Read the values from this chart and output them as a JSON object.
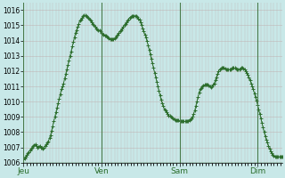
{
  "background_color": "#c8e8e8",
  "plot_bg_color": "#c8e8e8",
  "grid_color_v": "#c0b8b8",
  "grid_color_h": "#c0b8b8",
  "line_color": "#2d6e2d",
  "marker_color": "#2d6e2d",
  "ylim": [
    1006,
    1016.5
  ],
  "yticks": [
    1006,
    1007,
    1008,
    1009,
    1010,
    1011,
    1012,
    1013,
    1014,
    1015,
    1016
  ],
  "day_labels": [
    "Jeu",
    "Ven",
    "Sam",
    "Dim"
  ],
  "day_positions": [
    0,
    72,
    144,
    216
  ],
  "total_points": 288,
  "pressure_data": [
    1006.2,
    1006.3,
    1006.4,
    1006.5,
    1006.6,
    1006.7,
    1006.8,
    1006.9,
    1007.0,
    1007.1,
    1007.15,
    1007.2,
    1007.1,
    1007.0,
    1007.05,
    1007.1,
    1007.0,
    1006.95,
    1006.9,
    1007.0,
    1007.1,
    1007.2,
    1007.3,
    1007.4,
    1007.6,
    1007.8,
    1008.1,
    1008.4,
    1008.7,
    1009.0,
    1009.3,
    1009.6,
    1009.9,
    1010.2,
    1010.5,
    1010.8,
    1011.0,
    1011.2,
    1011.5,
    1011.8,
    1012.1,
    1012.4,
    1012.7,
    1013.0,
    1013.3,
    1013.6,
    1013.9,
    1014.2,
    1014.5,
    1014.7,
    1014.9,
    1015.1,
    1015.3,
    1015.4,
    1015.5,
    1015.6,
    1015.65,
    1015.65,
    1015.6,
    1015.55,
    1015.5,
    1015.4,
    1015.3,
    1015.2,
    1015.1,
    1015.0,
    1014.9,
    1014.8,
    1014.75,
    1014.7,
    1014.65,
    1014.6,
    1014.5,
    1014.45,
    1014.4,
    1014.35,
    1014.3,
    1014.25,
    1014.2,
    1014.15,
    1014.1,
    1014.1,
    1014.1,
    1014.1,
    1014.15,
    1014.2,
    1014.3,
    1014.4,
    1014.5,
    1014.6,
    1014.7,
    1014.8,
    1014.9,
    1015.0,
    1015.1,
    1015.2,
    1015.3,
    1015.4,
    1015.5,
    1015.55,
    1015.6,
    1015.62,
    1015.63,
    1015.62,
    1015.6,
    1015.55,
    1015.45,
    1015.35,
    1015.2,
    1015.0,
    1014.8,
    1014.6,
    1014.4,
    1014.2,
    1013.95,
    1013.7,
    1013.4,
    1013.1,
    1012.8,
    1012.5,
    1012.2,
    1011.9,
    1011.6,
    1011.3,
    1011.0,
    1010.7,
    1010.4,
    1010.1,
    1009.9,
    1009.7,
    1009.5,
    1009.4,
    1009.3,
    1009.2,
    1009.1,
    1009.05,
    1009.0,
    1008.95,
    1008.9,
    1008.85,
    1008.8,
    1008.8,
    1008.8,
    1008.8,
    1008.75,
    1008.7,
    1008.7,
    1008.7,
    1008.7,
    1008.7,
    1008.7,
    1008.7,
    1008.75,
    1008.8,
    1008.85,
    1008.9,
    1009.0,
    1009.2,
    1009.4,
    1009.7,
    1010.0,
    1010.3,
    1010.6,
    1010.8,
    1010.9,
    1011.0,
    1011.05,
    1011.1,
    1011.1,
    1011.1,
    1011.1,
    1011.05,
    1011.0,
    1010.95,
    1011.0,
    1011.1,
    1011.2,
    1011.4,
    1011.6,
    1011.8,
    1012.0,
    1012.1,
    1012.15,
    1012.2,
    1012.2,
    1012.2,
    1012.15,
    1012.1,
    1012.1,
    1012.1,
    1012.1,
    1012.1,
    1012.15,
    1012.2,
    1012.2,
    1012.2,
    1012.15,
    1012.1,
    1012.1,
    1012.1,
    1012.15,
    1012.2,
    1012.2,
    1012.15,
    1012.1,
    1012.0,
    1011.9,
    1011.75,
    1011.6,
    1011.4,
    1011.2,
    1011.0,
    1010.8,
    1010.55,
    1010.3,
    1010.05,
    1009.8,
    1009.5,
    1009.2,
    1008.9,
    1008.6,
    1008.3,
    1008.0,
    1007.75,
    1007.5,
    1007.3,
    1007.1,
    1006.9,
    1006.75,
    1006.6,
    1006.5,
    1006.45,
    1006.4,
    1006.38,
    1006.38,
    1006.38,
    1006.38,
    1006.38,
    1006.38,
    1006.38,
    1006.38,
    1006.38,
    1006.38,
    1006.38,
    1006.38,
    1006.38,
    1006.38,
    1006.38,
    1006.38,
    1006.38,
    1006.38,
    1006.38,
    1006.38,
    1006.38,
    1006.38,
    1006.38,
    1006.38,
    1006.38,
    1006.38,
    1006.38,
    1006.38,
    1006.38,
    1006.38,
    1006.38,
    1006.38,
    1006.38,
    1006.38,
    1006.38,
    1006.38,
    1006.38,
    1006.38,
    1006.38,
    1006.38,
    1006.38,
    1006.38,
    1006.38,
    1006.38,
    1006.38,
    1006.38,
    1006.38,
    1006.38,
    1006.38,
    1006.38,
    1006.38,
    1006.38,
    1006.38,
    1006.38,
    1006.38
  ]
}
